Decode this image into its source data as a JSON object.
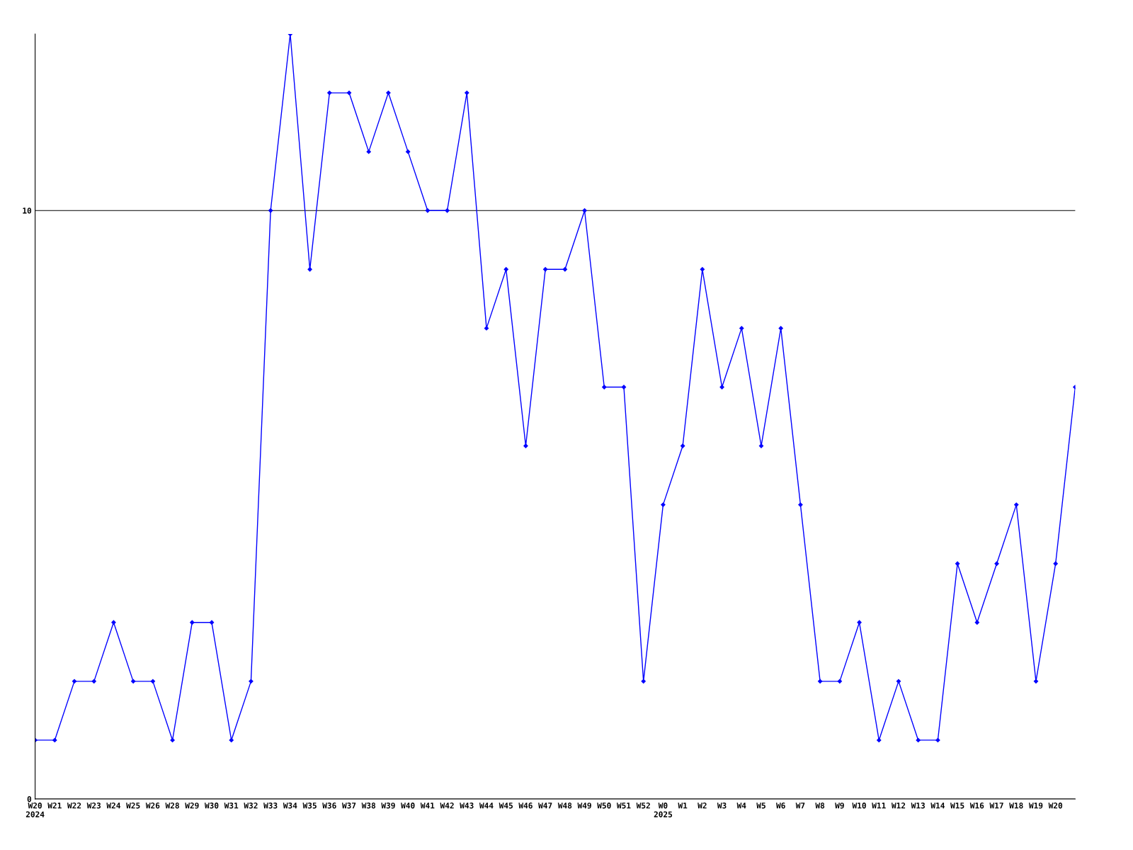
{
  "chart_data": {
    "type": "line",
    "categories": [
      "W20\n2024",
      "W21",
      "W22",
      "W23",
      "W24",
      "W25",
      "W26",
      "W28",
      "W29",
      "W30",
      "W31",
      "W32",
      "W33",
      "W34",
      "W35",
      "W36",
      "W37",
      "W38",
      "W39",
      "W40",
      "W41",
      "W42",
      "W43",
      "W44",
      "W45",
      "W46",
      "W47",
      "W48",
      "W49",
      "W50",
      "W51",
      "W52",
      "W0\n2025",
      "W1",
      "W2",
      "W3",
      "W4",
      "W5",
      "W6",
      "W7",
      "W8",
      "W9",
      "W10",
      "W11",
      "W12",
      "W13",
      "W14",
      "W15",
      "W16",
      "W17",
      "W18",
      "W19",
      "W20",
      null
    ],
    "series": [
      {
        "color": "#0000ff",
        "values": [
          1,
          1,
          2,
          2,
          3,
          2,
          2,
          1,
          3,
          3,
          1,
          2,
          10,
          13,
          9,
          12,
          12,
          11,
          12,
          11,
          10,
          10,
          12,
          8,
          9,
          6,
          9,
          9,
          10,
          7,
          7,
          2,
          5,
          6,
          9,
          7,
          8,
          6,
          8,
          5,
          2,
          2,
          3,
          1,
          2,
          1,
          1,
          4,
          3,
          4,
          5,
          2,
          4,
          7
        ]
      }
    ],
    "ylim": [
      0,
      13
    ],
    "yticks": [
      0,
      10
    ],
    "grid": "y",
    "marker": "diamond",
    "line_style": "solid"
  }
}
